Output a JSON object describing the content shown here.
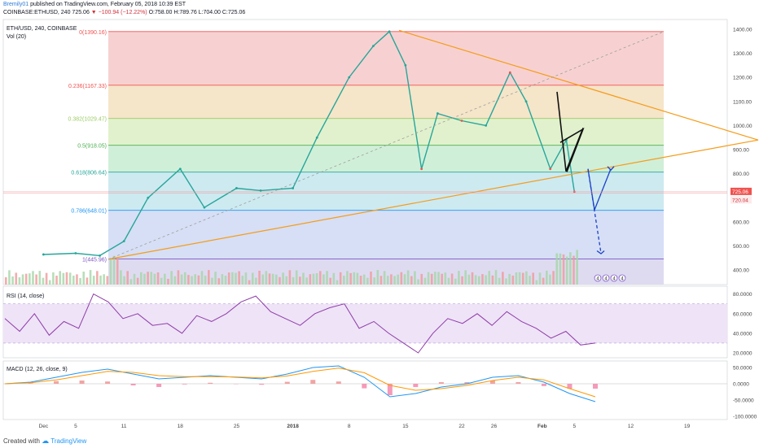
{
  "header": {
    "author": "Bremily01",
    "published_text": "published on TradingView.com, February 05, 2018 10:39 EST",
    "symbol_line_prefix": "COINBASE:ETHUSD, 240",
    "last_price": "725.06",
    "change_arrow": "▼",
    "change_text": "−100.94 (−12.22%)",
    "ohlc_text": "O:758.00 H:789.76 L:704.00 C:725.06"
  },
  "chart_data": [
    {
      "type": "line",
      "name": "price",
      "title": "ETH/USD, 240, COINBASE",
      "volume_label": "Vol (20)",
      "y_ticks": [
        400,
        500,
        600,
        700,
        800,
        900,
        1000,
        1100,
        1200,
        1300,
        1400
      ],
      "ylim": [
        340,
        1440
      ],
      "x_tick_labels": [
        "Dec",
        "5",
        "11",
        "18",
        "25",
        "2018",
        "8",
        "15",
        "22",
        "26",
        "Feb",
        "5",
        "12",
        "19"
      ],
      "x": [
        "2017-12-01",
        "2017-12-05",
        "2017-12-08",
        "2017-12-11",
        "2017-12-14",
        "2017-12-18",
        "2017-12-21",
        "2017-12-25",
        "2017-12-28",
        "2018-01-01",
        "2018-01-04",
        "2018-01-08",
        "2018-01-11",
        "2018-01-13",
        "2018-01-15",
        "2018-01-17",
        "2018-01-19",
        "2018-01-22",
        "2018-01-25",
        "2018-01-28",
        "2018-01-30",
        "2018-02-02",
        "2018-02-04",
        "2018-02-05"
      ],
      "values": [
        465,
        470,
        460,
        520,
        700,
        820,
        660,
        740,
        730,
        740,
        950,
        1200,
        1330,
        1390,
        1250,
        820,
        1050,
        1020,
        1000,
        1220,
        1100,
        820,
        940,
        725
      ],
      "fib_levels": [
        {
          "label": "0(1390.16)",
          "value": 1390.16,
          "color": "#ef5350"
        },
        {
          "label": "0.236(1167.33)",
          "value": 1167.33,
          "color": "#ef5350"
        },
        {
          "label": "0.382(1029.47)",
          "value": 1029.47,
          "color": "#9ccc65"
        },
        {
          "label": "0.5(918.05)",
          "value": 918.05,
          "color": "#4caf50"
        },
        {
          "label": "0.618(806.64)",
          "value": 806.64,
          "color": "#26a69a"
        },
        {
          "label": "0.786(648.01)",
          "value": 648.01,
          "color": "#2196f3"
        },
        {
          "label": "1(445.96)",
          "value": 445.96,
          "color": "#7e57c2"
        }
      ],
      "price_tags": [
        "725.06",
        "720.04"
      ],
      "icon_badges": [
        "4",
        "4",
        "4",
        "4"
      ]
    },
    {
      "type": "line",
      "name": "rsi",
      "title": "RSI (14, close)",
      "y_ticks": [
        "80.0000",
        "60.0000",
        "40.0000",
        "20.0000"
      ],
      "ylim": [
        15,
        88
      ],
      "band": [
        30,
        70
      ],
      "values": [
        55,
        42,
        60,
        38,
        52,
        45,
        80,
        72,
        55,
        60,
        48,
        50,
        40,
        58,
        52,
        60,
        72,
        78,
        62,
        55,
        48,
        60,
        66,
        70,
        45,
        52,
        40,
        30,
        20,
        40,
        55,
        50,
        60,
        48,
        62,
        52,
        45,
        35,
        42,
        28,
        30
      ]
    },
    {
      "type": "line",
      "name": "macd",
      "title": "MACD (12, 26, close, 9)",
      "y_ticks": [
        "50.0000",
        "0.0000",
        "-50.0000",
        "-100.0000"
      ],
      "ylim": [
        -110,
        70
      ],
      "macd": [
        0,
        5,
        20,
        35,
        45,
        30,
        15,
        20,
        25,
        20,
        15,
        30,
        50,
        55,
        20,
        -40,
        -30,
        -10,
        0,
        20,
        25,
        5,
        -30,
        -55
      ],
      "signal": [
        0,
        3,
        12,
        25,
        38,
        35,
        25,
        22,
        22,
        21,
        18,
        24,
        38,
        48,
        34,
        -5,
        -20,
        -15,
        -5,
        10,
        20,
        12,
        -15,
        -40
      ]
    }
  ],
  "footer": {
    "created_with": "Created with",
    "brand": "TradingView"
  }
}
